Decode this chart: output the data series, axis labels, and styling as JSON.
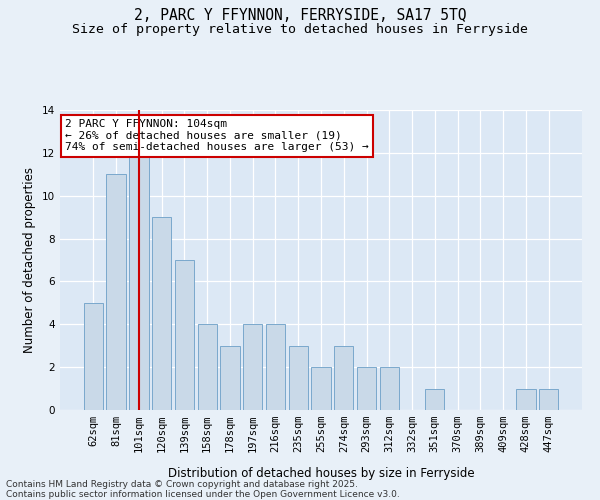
{
  "title": "2, PARC Y FFYNNON, FERRYSIDE, SA17 5TQ",
  "subtitle": "Size of property relative to detached houses in Ferryside",
  "xlabel": "Distribution of detached houses by size in Ferryside",
  "ylabel": "Number of detached properties",
  "categories": [
    "62sqm",
    "81sqm",
    "101sqm",
    "120sqm",
    "139sqm",
    "158sqm",
    "178sqm",
    "197sqm",
    "216sqm",
    "235sqm",
    "255sqm",
    "274sqm",
    "293sqm",
    "312sqm",
    "332sqm",
    "351sqm",
    "370sqm",
    "389sqm",
    "409sqm",
    "428sqm",
    "447sqm"
  ],
  "values": [
    5,
    11,
    12,
    9,
    7,
    4,
    3,
    4,
    4,
    3,
    2,
    3,
    2,
    2,
    0,
    1,
    0,
    0,
    0,
    1,
    1
  ],
  "bar_color": "#c9d9e8",
  "bar_edgecolor": "#7aa8cc",
  "background_color": "#e8f0f8",
  "plot_background": "#dce8f5",
  "vline_x_idx": 2,
  "vline_color": "#cc0000",
  "ylim": [
    0,
    14
  ],
  "yticks": [
    0,
    2,
    4,
    6,
    8,
    10,
    12,
    14
  ],
  "annotation_text": "2 PARC Y FFYNNON: 104sqm\n← 26% of detached houses are smaller (19)\n74% of semi-detached houses are larger (53) →",
  "annotation_box_facecolor": "#ffffff",
  "annotation_box_edgecolor": "#cc0000",
  "footer_text": "Contains HM Land Registry data © Crown copyright and database right 2025.\nContains public sector information licensed under the Open Government Licence v3.0.",
  "title_fontsize": 10.5,
  "subtitle_fontsize": 9.5,
  "axis_label_fontsize": 8.5,
  "tick_fontsize": 7.5,
  "annotation_fontsize": 8,
  "footer_fontsize": 6.5
}
